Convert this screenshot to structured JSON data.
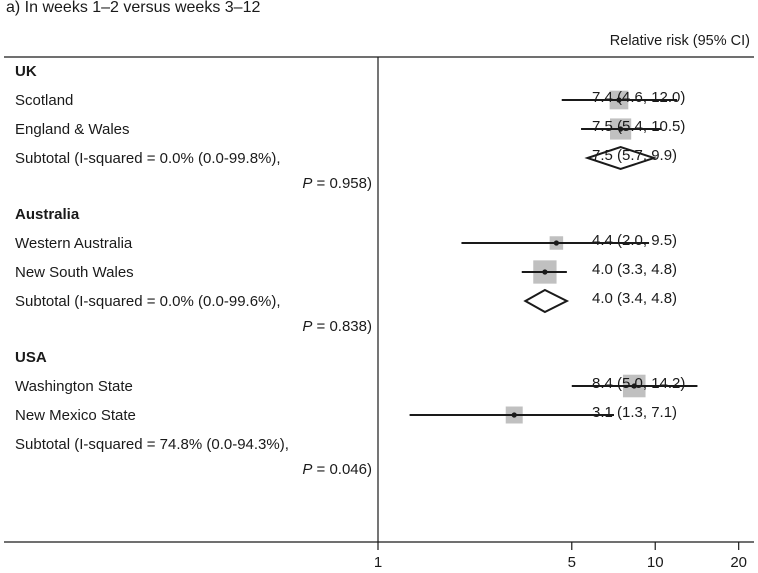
{
  "header": {
    "caption": "a) In weeks 1–2 versus weeks 3–12",
    "column_label": "Relative risk (95% CI)"
  },
  "chart_data": {
    "type": "forest",
    "x_scale": "log",
    "x_ticks": [
      "1",
      "5",
      "10",
      "20"
    ],
    "x_tick_values": [
      1,
      5,
      10,
      20
    ],
    "reference_line": 1,
    "groups": [
      {
        "name": "UK",
        "studies": [
          {
            "label": "Scotland",
            "estimate": 7.4,
            "lower": 4.6,
            "upper": 12.0,
            "weight": 0.62,
            "text": "7.4 (4.6, 12.0)"
          },
          {
            "label": "England & Wales",
            "estimate": 7.5,
            "lower": 5.4,
            "upper": 10.5,
            "weight": 0.8,
            "text": "7.5 (5.4, 10.5)"
          }
        ],
        "subtotal": {
          "label_line1": "Subtotal  (I-squared = 0.0% (0.0-99.8%),",
          "label_line2": "P = 0.958)",
          "p_prefix": "P",
          "p_value": " = 0.958)",
          "estimate": 7.5,
          "lower": 5.7,
          "upper": 9.9,
          "text": "7.5 (5.7,  9.9)"
        }
      },
      {
        "name": "Australia",
        "studies": [
          {
            "label": "Western Australia",
            "estimate": 4.4,
            "lower": 2.0,
            "upper": 9.5,
            "weight": 0.25,
            "text": "4.4 (2.0, 9.5)"
          },
          {
            "label": "New South Wales",
            "estimate": 4.0,
            "lower": 3.3,
            "upper": 4.8,
            "weight": 0.95,
            "text": "4.0 (3.3, 4.8)"
          }
        ],
        "subtotal": {
          "label_line1": "Subtotal  (I-squared = 0.0% (0.0-99.6%),",
          "p_prefix": "P",
          "p_value": " = 0.838)",
          "estimate": 4.0,
          "lower": 3.4,
          "upper": 4.8,
          "text": "4.0 (3.4, 4.8)"
        }
      },
      {
        "name": "USA",
        "studies": [
          {
            "label": "Washington State",
            "estimate": 8.4,
            "lower": 5.0,
            "upper": 14.2,
            "weight": 0.9,
            "text": "8.4 (5.0, 14.2)"
          },
          {
            "label": "New Mexico State",
            "estimate": 3.1,
            "lower": 1.3,
            "upper": 7.1,
            "weight": 0.5,
            "text": "3.1 (1.3, 7.1)"
          }
        ],
        "subtotal": {
          "label_line1": "Subtotal  (I-squared = 74.8% (0.0-94.3%),",
          "p_prefix": "P",
          "p_value": " = 0.046)"
        }
      }
    ]
  }
}
